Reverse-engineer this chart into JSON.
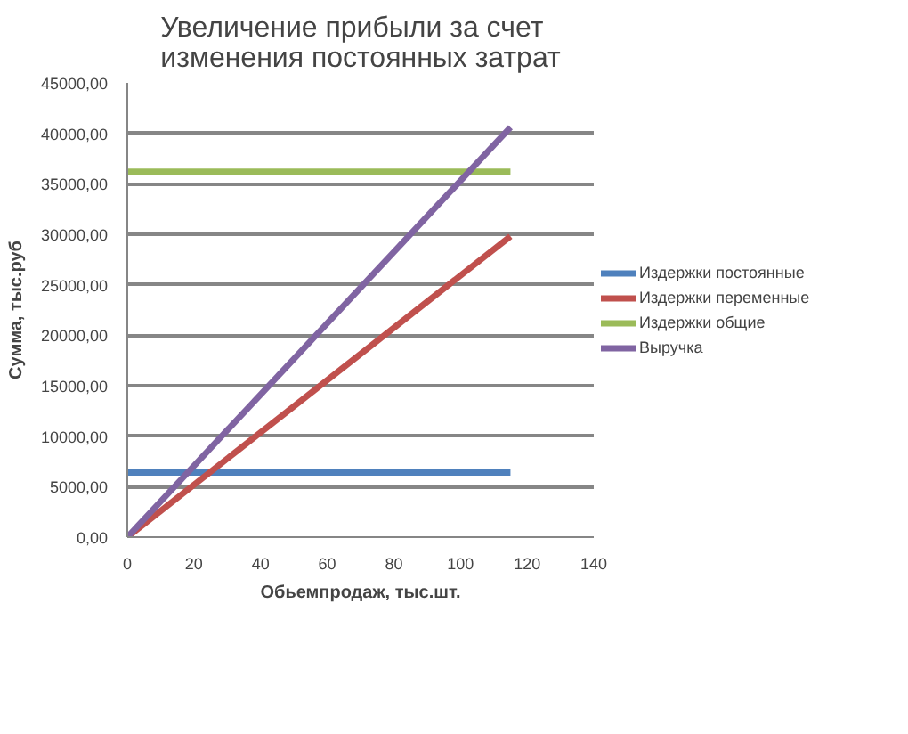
{
  "chart_data": {
    "type": "line",
    "title": "Увеличение прибыли за счет изменения постоянных затрат",
    "xlabel": "Обьемпродаж, тыс.шт.",
    "ylabel": "Сумма, тыс.руб",
    "x": [
      0,
      115
    ],
    "series": [
      {
        "name": "Издержки постоянные",
        "color": "#4f81bd",
        "values": [
          6400,
          6400
        ]
      },
      {
        "name": "Издержки переменные",
        "color": "#c0504d",
        "values": [
          0,
          29800
        ]
      },
      {
        "name": "Издержки общие",
        "color": "#9bbb59",
        "values": [
          36200,
          36200
        ]
      },
      {
        "name": "Выручка",
        "color": "#8064a2",
        "values": [
          0,
          40600
        ]
      }
    ],
    "xlim": [
      0,
      140
    ],
    "xticks": [
      0,
      20,
      40,
      60,
      80,
      100,
      120,
      140
    ],
    "ylim": [
      0,
      45000
    ],
    "yticks": [
      {
        "value": 0,
        "label": "0,00"
      },
      {
        "value": 5000,
        "label": "5000,00"
      },
      {
        "value": 10000,
        "label": "10000,00"
      },
      {
        "value": 15000,
        "label": "15000,00"
      },
      {
        "value": 20000,
        "label": "20000,00"
      },
      {
        "value": 25000,
        "label": "25000,00"
      },
      {
        "value": 30000,
        "label": "30000,00"
      },
      {
        "value": 35000,
        "label": "35000,00"
      },
      {
        "value": 40000,
        "label": "40000,00"
      },
      {
        "value": 45000,
        "label": "45000,00"
      }
    ],
    "grid": "y",
    "legend": "right",
    "marker": "none",
    "line_style": "solid"
  }
}
